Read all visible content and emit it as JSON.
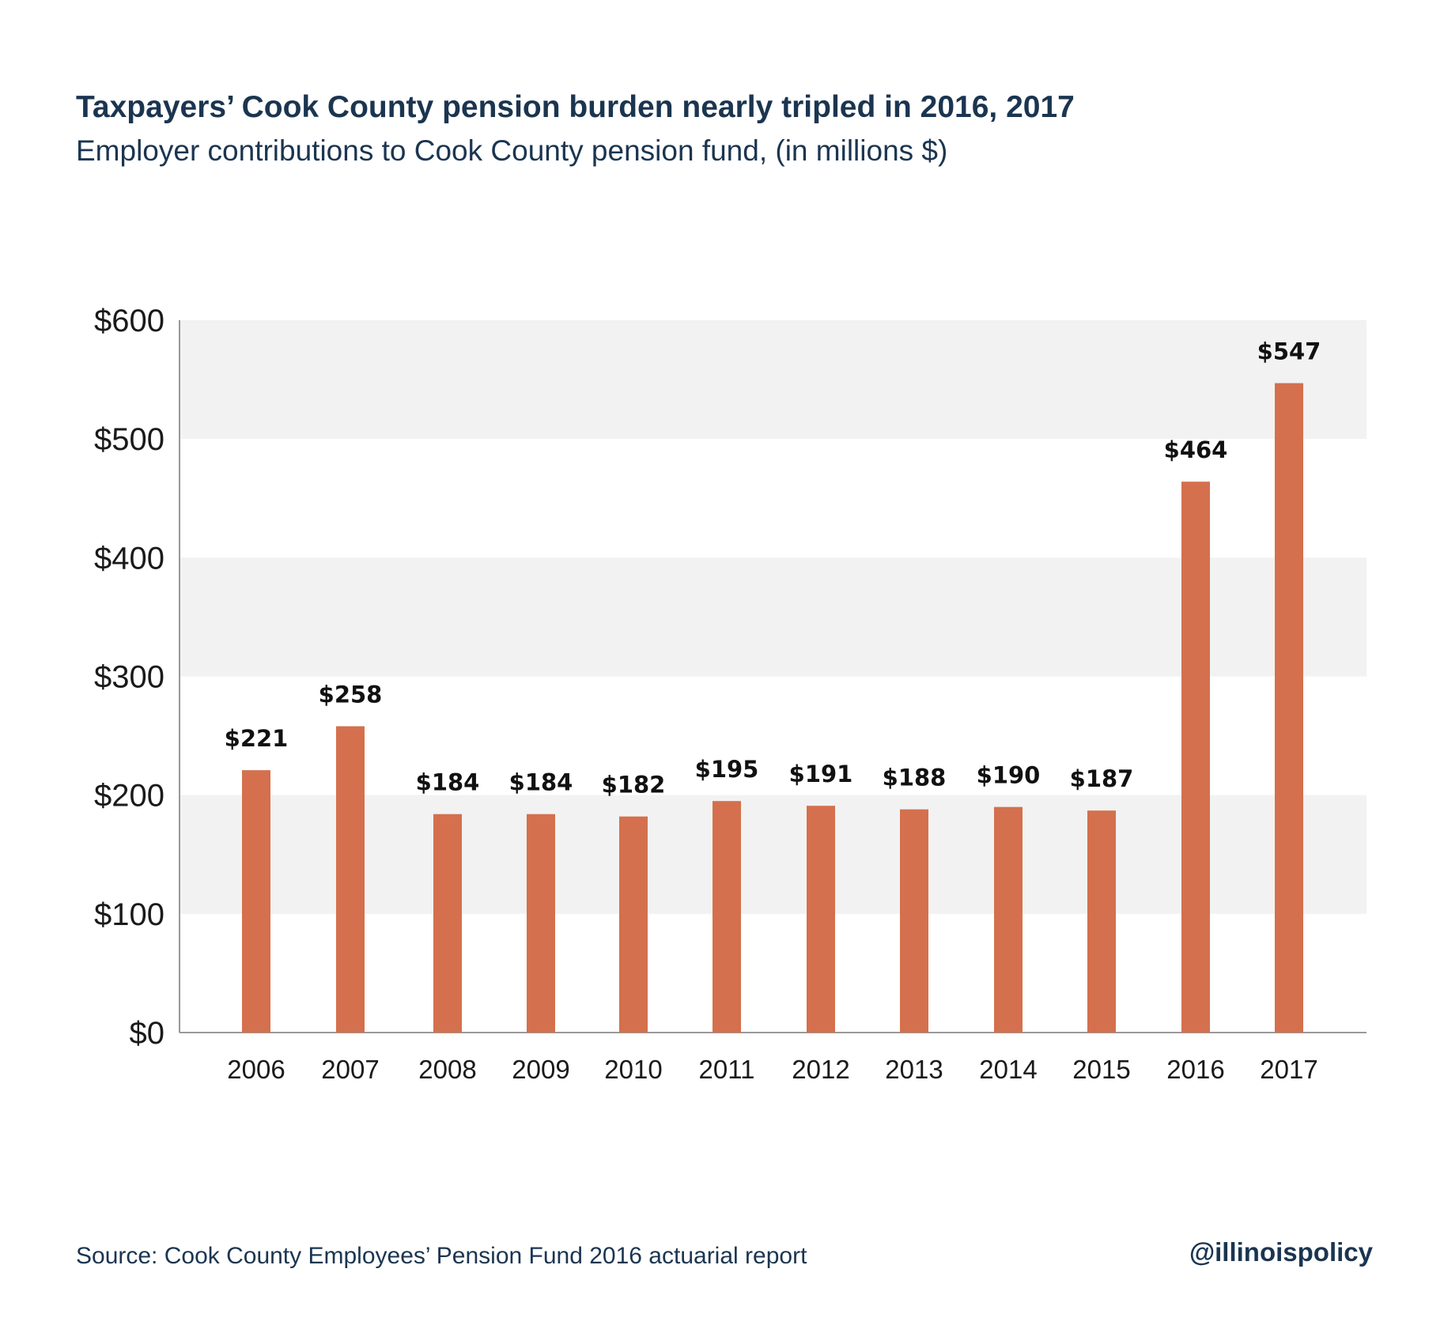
{
  "header": {
    "title": "Taxpayers’ Cook County pension burden nearly tripled in 2016, 2017",
    "subtitle": "Employer contributions to Cook County pension fund, (in millions $)"
  },
  "footer": {
    "source": "Source: Cook County Employees’ Pension Fund 2016 actuarial report",
    "handle": "@illinoispolicy"
  },
  "colors": {
    "bar": "#d4704d",
    "band": "#f2f2f2",
    "text_dark": "#1b3550",
    "axis": "#999999"
  },
  "chart_data": {
    "type": "bar",
    "title": "Taxpayers’ Cook County pension burden nearly tripled in 2016, 2017",
    "subtitle": "Employer contributions to Cook County pension fund, (in millions $)",
    "xlabel": "",
    "ylabel": "",
    "categories": [
      "2006",
      "2007",
      "2008",
      "2009",
      "2010",
      "2011",
      "2012",
      "2013",
      "2014",
      "2015",
      "2016",
      "2017"
    ],
    "values": [
      221,
      258,
      184,
      184,
      182,
      195,
      191,
      188,
      190,
      187,
      464,
      547
    ],
    "data_labels": [
      "$221",
      "$258",
      "$184",
      "$184",
      "$182",
      "$195",
      "$191",
      "$188",
      "$190",
      "$187",
      "$464",
      "$547"
    ],
    "ylim": [
      0,
      600
    ],
    "yticks": [
      0,
      100,
      200,
      300,
      400,
      500,
      600
    ],
    "ytick_labels": [
      "$0",
      "$100",
      "$200",
      "$300",
      "$400",
      "$500",
      "$600"
    ],
    "grid": "alternating horizontal bands",
    "legend": "none"
  }
}
